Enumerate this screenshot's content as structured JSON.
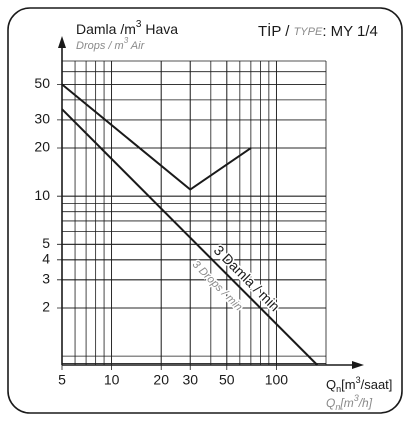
{
  "chart_data": {
    "type": "line",
    "y_label": {
      "main": "Damla /m",
      "sup": "3",
      "rest": " Hava"
    },
    "y_label_en": {
      "main": "Drops / m",
      "sup": "3",
      "rest": " Air"
    },
    "type_label": {
      "tr": "TİP / ",
      "en": "TYPE",
      "value": ": MY 1/4"
    },
    "x_label": {
      "q": "Q",
      "sub": "n",
      "main": "[m",
      "sup": "3",
      "rest": "/saat]"
    },
    "x_label_en": {
      "q": "Q",
      "sub": "n",
      "main": "[m",
      "sup": "3",
      "rest": "/h]"
    },
    "log_x": true,
    "log_y": true,
    "grid": true,
    "xlim": [
      5,
      200
    ],
    "ylim": [
      0.88,
      70
    ],
    "xticks": [
      5,
      10,
      20,
      30,
      50,
      100
    ],
    "yticks": [
      2,
      3,
      4,
      5,
      10,
      20,
      30,
      50
    ],
    "series": [
      {
        "color": "#1a1a1a",
        "x": [
          5,
          30,
          70
        ],
        "values": [
          50,
          11,
          20
        ]
      },
      {
        "color": "#1a1a1a",
        "x": [
          5,
          177
        ],
        "values": [
          35,
          0.88
        ]
      }
    ],
    "annotations": [
      "3 Damla / min",
      "3 Drops / min"
    ]
  }
}
